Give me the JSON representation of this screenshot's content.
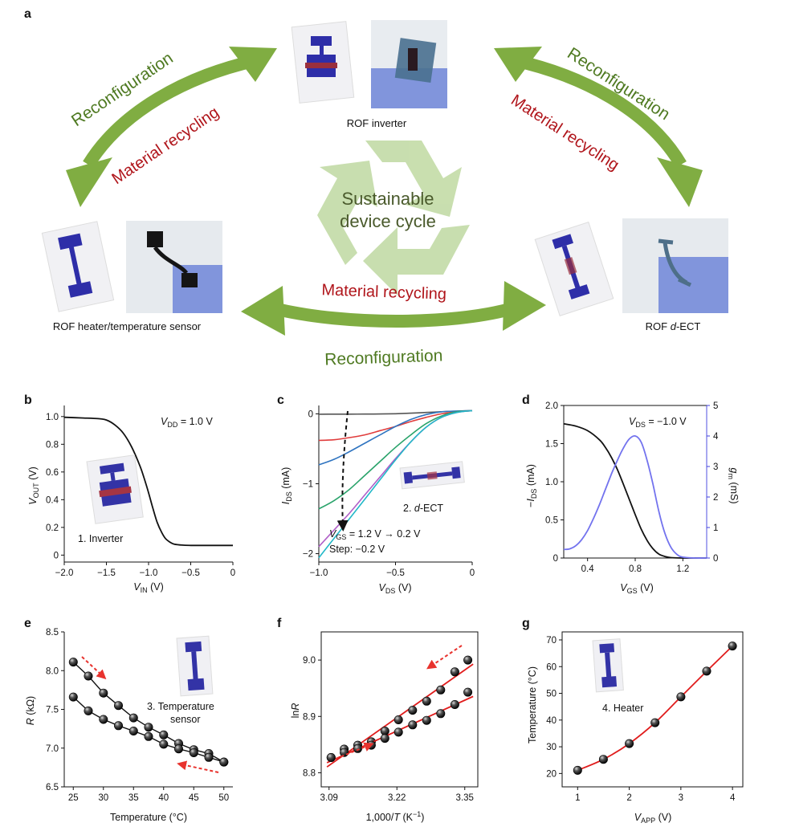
{
  "panel_labels": [
    "a",
    "b",
    "c",
    "d",
    "e",
    "f",
    "g"
  ],
  "schematic": {
    "center_text_line1": "Sustainable",
    "center_text_line2": "device cycle",
    "reconfiguration": "Reconfiguration",
    "material_recycling": "Material recycling",
    "device_inverter": "ROF inverter",
    "device_heater": "ROF heater/temperature sensor",
    "device_ect_prefix": "ROF ",
    "device_ect_italic": "d",
    "device_ect_suffix": "-ECT",
    "colors": {
      "arrow_green": "#7fae3f",
      "recycle_green": "#bfd9a3",
      "recycling_red": "#b0151b",
      "device_blue": "#2f2f9f"
    }
  },
  "chart_data": [
    {
      "panel": "b",
      "type": "line",
      "annotation": "V_DD = 1.0 V",
      "label": "1. Inverter",
      "xlabel": "V_IN (V)",
      "ylabel": "V_OUT (V)",
      "xlim": [
        -2.0,
        0
      ],
      "ylim": [
        -0.05,
        1.08
      ],
      "xticks": [
        "−2.0",
        "−1.5",
        "−1.0",
        "−0.5",
        "0"
      ],
      "yticks": [
        "0",
        "0.2",
        "0.4",
        "0.6",
        "0.8",
        "1.0"
      ],
      "series": [
        {
          "x": [
            -2.0,
            -1.8,
            -1.6,
            -1.5,
            -1.4,
            -1.3,
            -1.2,
            -1.1,
            -1.05,
            -1.0,
            -0.95,
            -0.9,
            -0.85,
            -0.8,
            -0.75,
            -0.7,
            -0.6,
            -0.5,
            -0.3,
            0.0
          ],
          "y": [
            0.995,
            0.99,
            0.985,
            0.975,
            0.94,
            0.88,
            0.78,
            0.64,
            0.55,
            0.45,
            0.34,
            0.24,
            0.17,
            0.12,
            0.095,
            0.08,
            0.072,
            0.07,
            0.07,
            0.07
          ]
        }
      ]
    },
    {
      "panel": "c",
      "type": "line",
      "annotation_line1": "V_GS = 1.2 V → 0.2 V",
      "annotation_line2": "Step: −0.2 V",
      "label": "2. d-ECT",
      "xlabel": "V_DS (V)",
      "ylabel": "I_DS (mA)",
      "xlim": [
        -1.0,
        0
      ],
      "ylim": [
        -2.12,
        0.12
      ],
      "xticks": [
        "−1.0",
        "−0.5",
        "0"
      ],
      "yticks": [
        "0",
        "−1",
        "−2"
      ],
      "x": [
        -1.0,
        -0.9,
        -0.8,
        -0.7,
        -0.6,
        -0.5,
        -0.4,
        -0.3,
        -0.2,
        -0.1,
        0.0
      ],
      "series": [
        {
          "color": "#555555",
          "y": [
            -0.005,
            -0.004,
            -0.004,
            -0.003,
            -0.002,
            0.002,
            0.01,
            0.02,
            0.03,
            0.04,
            0.045
          ]
        },
        {
          "color": "#e03c3c",
          "y": [
            -0.38,
            -0.37,
            -0.34,
            -0.3,
            -0.24,
            -0.18,
            -0.11,
            -0.05,
            0.0,
            0.03,
            0.045
          ]
        },
        {
          "color": "#2f74c0",
          "y": [
            -0.73,
            -0.65,
            -0.54,
            -0.42,
            -0.3,
            -0.18,
            -0.08,
            -0.01,
            0.03,
            0.04,
            0.045
          ]
        },
        {
          "color": "#2aa36b",
          "y": [
            -1.36,
            -1.24,
            -1.08,
            -0.88,
            -0.68,
            -0.48,
            -0.3,
            -0.14,
            -0.03,
            0.03,
            0.045
          ]
        },
        {
          "color": "#b05fc8",
          "y": [
            -1.9,
            -1.66,
            -1.42,
            -1.16,
            -0.9,
            -0.64,
            -0.4,
            -0.19,
            -0.05,
            0.02,
            0.045
          ]
        },
        {
          "color": "#22b8c8",
          "y": [
            -2.06,
            -1.78,
            -1.5,
            -1.22,
            -0.94,
            -0.66,
            -0.4,
            -0.19,
            -0.05,
            0.02,
            0.045
          ]
        }
      ]
    },
    {
      "panel": "d",
      "type": "line",
      "annotation": "V_DS = −1.0 V",
      "xlabel": "V_GS (V)",
      "ylabel": "−I_DS (mA)",
      "y2label": "g_m (mS)",
      "xlim": [
        0.2,
        1.4
      ],
      "ylim": [
        0,
        2.0
      ],
      "y2lim": [
        0,
        5
      ],
      "xticks": [
        "0.4",
        "0.8",
        "1.2"
      ],
      "yticks": [
        "0",
        "0.5",
        "1.0",
        "1.5",
        "2.0"
      ],
      "y2ticks": [
        "0",
        "1",
        "2",
        "3",
        "4",
        "5"
      ],
      "series": [
        {
          "color": "#111111",
          "axis": "left",
          "x": [
            0.2,
            0.3,
            0.4,
            0.5,
            0.55,
            0.6,
            0.65,
            0.7,
            0.75,
            0.8,
            0.85,
            0.9,
            0.95,
            1.0,
            1.05,
            1.1,
            1.2,
            1.3,
            1.4
          ],
          "y": [
            1.76,
            1.73,
            1.67,
            1.55,
            1.45,
            1.32,
            1.16,
            0.97,
            0.77,
            0.57,
            0.38,
            0.23,
            0.12,
            0.05,
            0.02,
            0.005,
            0.0,
            0.0,
            0.0
          ]
        },
        {
          "color": "#7373ee",
          "axis": "right",
          "x": [
            0.2,
            0.25,
            0.3,
            0.35,
            0.4,
            0.45,
            0.5,
            0.55,
            0.6,
            0.65,
            0.7,
            0.75,
            0.8,
            0.85,
            0.9,
            0.95,
            1.0,
            1.05,
            1.1,
            1.15,
            1.2,
            1.3,
            1.4
          ],
          "y": [
            0.28,
            0.3,
            0.4,
            0.6,
            0.9,
            1.3,
            1.75,
            2.25,
            2.75,
            3.2,
            3.6,
            3.9,
            4.0,
            3.8,
            3.2,
            2.4,
            1.5,
            0.8,
            0.35,
            0.12,
            0.03,
            0.0,
            0.0
          ]
        }
      ]
    },
    {
      "panel": "e",
      "type": "scatter",
      "label_line1": "3. Temperature",
      "label_line2": "sensor",
      "xlabel": "Temperature (°C)",
      "ylabel": "R (kΩ)",
      "xlim": [
        23.5,
        51.5
      ],
      "ylim": [
        6.5,
        8.5
      ],
      "xticks": [
        "25",
        "30",
        "35",
        "40",
        "45",
        "50"
      ],
      "yticks": [
        "6.5",
        "7.0",
        "7.5",
        "8.0",
        "8.5"
      ],
      "series": [
        {
          "x": [
            25,
            27.5,
            30,
            32.5,
            35,
            37.5,
            40,
            42.5,
            45,
            47.5,
            50
          ],
          "y": [
            8.11,
            7.93,
            7.71,
            7.55,
            7.39,
            7.27,
            7.17,
            7.06,
            6.98,
            6.93,
            6.82
          ]
        },
        {
          "x": [
            25,
            27.5,
            30,
            32.5,
            35,
            37.5,
            40,
            42.5,
            45,
            47.5,
            50
          ],
          "y": [
            7.66,
            7.48,
            7.37,
            7.29,
            7.22,
            7.15,
            7.05,
            6.99,
            6.94,
            6.88,
            6.82
          ]
        }
      ]
    },
    {
      "panel": "f",
      "type": "scatter",
      "xlabel": "1,000/T (K⁻¹)",
      "ylabel": "lnR",
      "xlim": [
        3.075,
        3.375
      ],
      "ylim": [
        8.775,
        9.05
      ],
      "xticks": [
        "3.09",
        "3.22",
        "3.35"
      ],
      "yticks": [
        "8.8",
        "8.9",
        "9.0"
      ],
      "series": [
        {
          "x": [
            3.094,
            3.119,
            3.145,
            3.171,
            3.197,
            3.223,
            3.25,
            3.277,
            3.304,
            3.331,
            3.356
          ],
          "y": [
            8.827,
            8.842,
            8.849,
            8.855,
            8.874,
            8.894,
            8.911,
            8.927,
            8.947,
            8.979,
            9.0
          ]
        },
        {
          "x": [
            3.094,
            3.119,
            3.145,
            3.171,
            3.197,
            3.223,
            3.25,
            3.277,
            3.304,
            3.331,
            3.356
          ],
          "y": [
            8.827,
            8.836,
            8.843,
            8.849,
            8.861,
            8.872,
            8.885,
            8.893,
            8.905,
            8.921,
            8.943
          ]
        }
      ]
    },
    {
      "panel": "g",
      "type": "line",
      "label": "4. Heater",
      "xlabel": "V_APP (V)",
      "ylabel": "Temperature (°C)",
      "xlim": [
        0.7,
        4.2
      ],
      "ylim": [
        15,
        73
      ],
      "xticks": [
        "1",
        "2",
        "3",
        "4"
      ],
      "yticks": [
        "20",
        "30",
        "40",
        "50",
        "60",
        "70"
      ],
      "series": [
        {
          "x": [
            1,
            1.5,
            2,
            2.5,
            3,
            3.5,
            4
          ],
          "y": [
            21.2,
            25.3,
            31.2,
            39.0,
            48.7,
            58.3,
            67.7
          ]
        }
      ]
    }
  ]
}
